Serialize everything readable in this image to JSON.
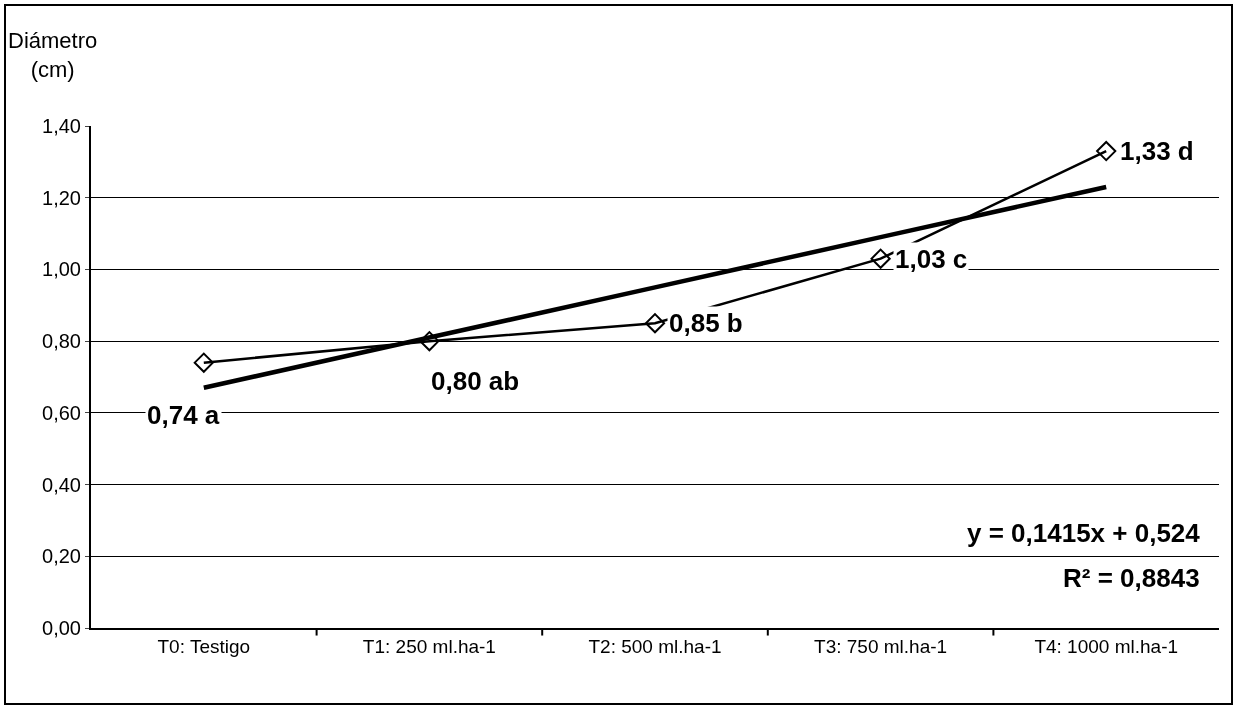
{
  "chart_data": {
    "type": "line",
    "ylabel": "Diámetro\n(cm)",
    "categories": [
      "T0: Testigo",
      "T1: 250 ml.ha-1",
      "T2: 500 ml.ha-1",
      "T3: 750 ml.ha-1",
      "T4: 1000 ml.ha-1"
    ],
    "series": [
      {
        "color": "#000000",
        "values": [
          0.74,
          0.8,
          0.85,
          1.03,
          1.33
        ],
        "value_labels": [
          "0,74 a",
          "0,80 ab",
          "0,85 b",
          "1,03 c",
          "1,33 d"
        ],
        "marker": "diamond"
      },
      {
        "color": "#000000",
        "values": [
          0.67,
          0.81,
          0.95,
          1.09,
          1.23
        ],
        "marker": "none"
      }
    ],
    "ylim": [
      0,
      1.4
    ],
    "yticks": [
      {
        "value": 0,
        "label": "0,00"
      },
      {
        "value": 0.2,
        "label": "0,20"
      },
      {
        "value": 0.4,
        "label": "0,40"
      },
      {
        "value": 0.6,
        "label": "0,60"
      },
      {
        "value": 0.8,
        "label": "0,80"
      },
      {
        "value": 1.0,
        "label": "1,00"
      },
      {
        "value": 1.2,
        "label": "1,20"
      },
      {
        "value": 1.4,
        "label": "1,40"
      }
    ],
    "grid": "y",
    "line_style": "solid",
    "annotations": [
      "y = 0,1415x + 0,524",
      "R² = 0,8843"
    ]
  }
}
